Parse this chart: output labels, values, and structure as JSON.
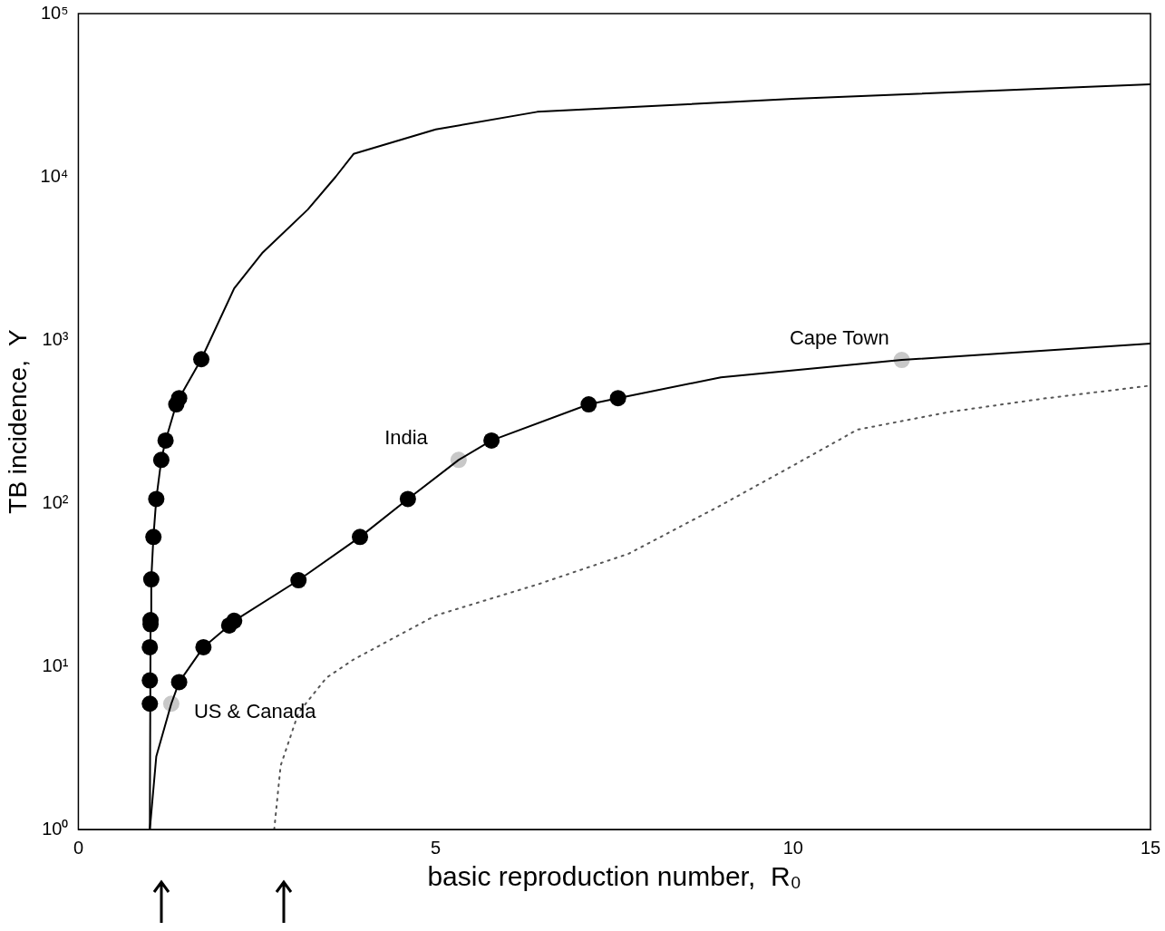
{
  "chart_data": {
    "type": "line",
    "xlabel": "basic reproduction number,  R₀",
    "ylabel": "TB incidence,  Y",
    "log": "y",
    "grid": false,
    "legend": false,
    "xlim": [
      0,
      15
    ],
    "xticks": [
      0,
      5,
      10,
      15
    ],
    "ylim": [
      1,
      100000
    ],
    "yticks": [
      {
        "value": 1,
        "label": "10⁰"
      },
      {
        "value": 10,
        "label": "10¹"
      },
      {
        "value": 100,
        "label": "10²"
      },
      {
        "value": 1000,
        "label": "10³"
      },
      {
        "value": 10000,
        "label": "10⁴"
      },
      {
        "value": 100000,
        "label": "10⁵"
      }
    ],
    "series": [
      {
        "type": "line",
        "color": "#000000",
        "line_style": "solid",
        "marker": "none",
        "x": [
          1.0,
          1.01,
          1.02,
          1.05,
          1.09,
          1.16,
          1.22,
          1.37,
          1.41,
          1.72,
          2.18,
          2.57,
          3.21,
          3.6,
          3.85,
          5.0,
          6.42,
          10,
          15
        ],
        "values": [
          1,
          18.1,
          34.1,
          62,
          106,
          184,
          242,
          403,
          440,
          762,
          2070,
          3400,
          6300,
          10000,
          13800,
          19500,
          25000,
          30000,
          36900
        ]
      },
      {
        "type": "line",
        "color": "#000000",
        "line_style": "solid",
        "marker": "none",
        "x": [
          1.0,
          1.09,
          1.3,
          1.41,
          1.75,
          2.11,
          2.18,
          3.08,
          3.94,
          4.61,
          5.32,
          5.78,
          7.14,
          7.55,
          8.99,
          11.52,
          15
        ],
        "values": [
          1,
          2.8,
          5.9,
          8.0,
          13.1,
          17.8,
          19,
          33.7,
          62,
          106,
          184,
          242,
          403,
          440,
          590,
          754,
          950
        ]
      },
      {
        "type": "line",
        "color": "#555555",
        "line_style": "dotted",
        "marker": "none",
        "x": [
          2.74,
          2.83,
          3.08,
          3.47,
          3.85,
          5.0,
          6.42,
          7.7,
          8.99,
          10,
          10.9,
          12.2,
          13.5,
          15
        ],
        "values": [
          1,
          2.46,
          5.2,
          8.5,
          11,
          20.5,
          31.7,
          49,
          97,
          170,
          282,
          363,
          437,
          525
        ]
      },
      {
        "type": "scatter",
        "color": "#000000",
        "marker": "circle",
        "x": [
          1.0,
          1.0,
          1.0,
          1.01,
          1.01,
          1.02,
          1.05,
          1.09,
          1.16,
          1.22,
          1.37,
          1.41,
          1.72,
          1.41,
          1.75,
          2.11,
          2.18,
          3.08,
          3.94,
          4.61,
          5.78,
          7.14,
          7.55
        ],
        "values": [
          5.9,
          8.2,
          13.1,
          18.1,
          19.2,
          34.1,
          62,
          106,
          184,
          242,
          403,
          440,
          762,
          8.0,
          13.1,
          17.8,
          19,
          33.7,
          62,
          106,
          242,
          403,
          440
        ]
      },
      {
        "type": "scatter",
        "color": "#c8c8c8",
        "marker": "circle",
        "x": [
          1.3,
          5.32,
          11.52
        ],
        "values": [
          5.9,
          184,
          754
        ]
      }
    ],
    "annotations": [
      {
        "text": "US & Canada",
        "x": 1.3,
        "y": 5.9
      },
      {
        "text": "India",
        "x": 5.32,
        "y": 184
      },
      {
        "text": "Cape Town",
        "x": 11.52,
        "y": 754
      }
    ]
  }
}
